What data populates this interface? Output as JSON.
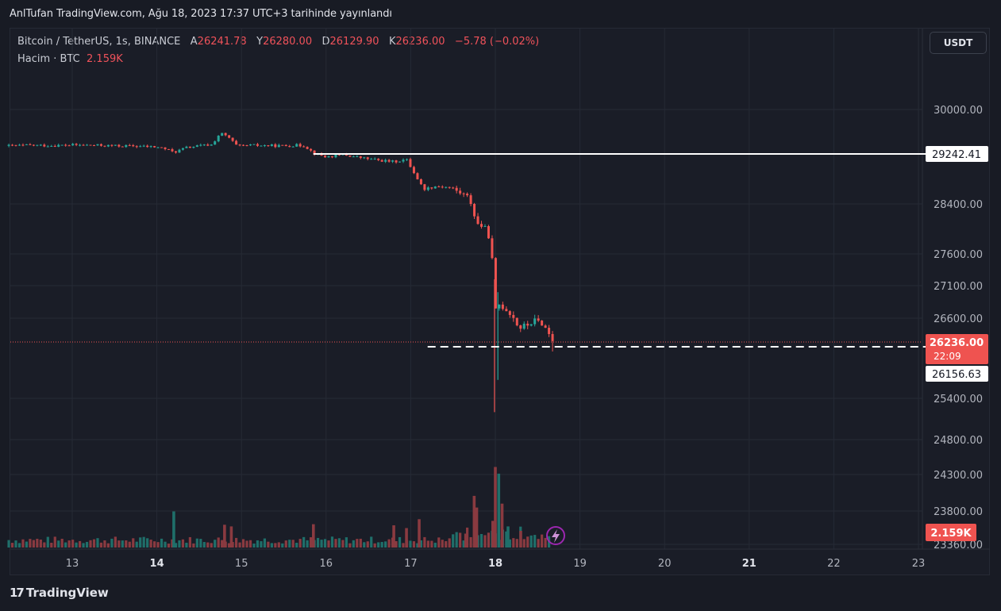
{
  "header": {
    "published": "AnlTufan TradingView.com, Ağu 18, 2023 17:37 UTC+3 tarihinde yayınlandı"
  },
  "legend": {
    "symbol": "Bitcoin / TetherUS, 1s, BINANCE",
    "open_label": "A",
    "open": "26241.78",
    "high_label": "Y",
    "high": "26280.00",
    "low_label": "D",
    "low": "26129.90",
    "close_label": "K",
    "close": "26236.00",
    "change": "−5.78 (−0.02%)",
    "volume_label": "Hacim · BTC",
    "volume": "2.159K"
  },
  "currency_button": "USDT",
  "footer": {
    "brand": "TradingView",
    "logo_mark": "17"
  },
  "colors": {
    "up": "#26a69a",
    "down": "#ef5350",
    "up_volume": "#1f6f6a",
    "down_volume": "#8a3a40",
    "background": "#1a1d27",
    "grid": "#262a35"
  },
  "chart_data": {
    "type": "candlestick",
    "symbol": "Bitcoin / TetherUS",
    "interval": "1s",
    "exchange": "BINANCE",
    "y_ticks": [
      30000,
      28400,
      27600,
      27100,
      26600,
      25400,
      24800,
      24300,
      23800,
      23360
    ],
    "y_tick_labels": [
      "30000.00",
      "28400.00",
      "27600.00",
      "27100.00",
      "26600.00",
      "25400.00",
      "24800.00",
      "24300.00",
      "23800.00",
      "23360.00"
    ],
    "x_ticks": [
      13,
      14,
      15,
      16,
      17,
      18,
      19,
      20,
      21,
      22,
      23
    ],
    "x_tick_labels": [
      "13",
      "14",
      "15",
      "16",
      "17",
      "18",
      "19",
      "20",
      "21",
      "22",
      "23"
    ],
    "x_range": [
      12.25,
      23.3
    ],
    "bold_x_ticks": [
      14,
      18,
      21
    ],
    "horizontal_lines": [
      {
        "price": 29242.41,
        "label": "29242.41",
        "style": "solid",
        "from_x": 15.85
      },
      {
        "price": 26156.63,
        "label": "26156.63",
        "style": "dashed",
        "from_x": 17.2
      }
    ],
    "last_price": {
      "value": 26236.0,
      "label": "26236.00",
      "countdown": "22:09"
    },
    "volume_badge": "2.159K",
    "price_path": [
      [
        12.25,
        29380
      ],
      [
        12.5,
        29390
      ],
      [
        12.75,
        29385
      ],
      [
        13.0,
        29395
      ],
      [
        13.25,
        29390
      ],
      [
        13.5,
        29380
      ],
      [
        13.75,
        29375
      ],
      [
        14.0,
        29360
      ],
      [
        14.1,
        29330
      ],
      [
        14.2,
        29270
      ],
      [
        14.35,
        29350
      ],
      [
        14.5,
        29380
      ],
      [
        14.65,
        29400
      ],
      [
        14.75,
        29600
      ],
      [
        14.85,
        29520
      ],
      [
        14.95,
        29370
      ],
      [
        15.1,
        29390
      ],
      [
        15.3,
        29385
      ],
      [
        15.5,
        29380
      ],
      [
        15.65,
        29390
      ],
      [
        15.75,
        29380
      ],
      [
        15.85,
        29260
      ],
      [
        16.0,
        29190
      ],
      [
        16.2,
        29230
      ],
      [
        16.4,
        29180
      ],
      [
        16.6,
        29140
      ],
      [
        16.8,
        29110
      ],
      [
        16.95,
        29150
      ],
      [
        17.05,
        28900
      ],
      [
        17.15,
        28650
      ],
      [
        17.3,
        28700
      ],
      [
        17.45,
        28680
      ],
      [
        17.6,
        28580
      ],
      [
        17.7,
        28480
      ],
      [
        17.78,
        28080
      ],
      [
        17.85,
        28050
      ],
      [
        17.93,
        27880
      ],
      [
        17.97,
        27400
      ],
      [
        18.0,
        26700
      ],
      [
        18.05,
        26820
      ],
      [
        18.12,
        26750
      ],
      [
        18.2,
        26650
      ],
      [
        18.28,
        26450
      ],
      [
        18.36,
        26480
      ],
      [
        18.45,
        26560
      ],
      [
        18.55,
        26530
      ],
      [
        18.65,
        26330
      ],
      [
        18.7,
        26236
      ]
    ],
    "spikes": [
      {
        "x": 17.99,
        "high": 27200,
        "low": 25200
      },
      {
        "x": 18.03,
        "high": 27000,
        "low": 25950
      }
    ],
    "volume_bars": [
      {
        "x": 14.2,
        "v": 6.5
      },
      {
        "x": 14.8,
        "v": 4.1
      },
      {
        "x": 14.88,
        "v": 3.8
      },
      {
        "x": 15.85,
        "v": 4.2
      },
      {
        "x": 16.8,
        "v": 4.0
      },
      {
        "x": 16.95,
        "v": 3.5
      },
      {
        "x": 17.1,
        "v": 5.1
      },
      {
        "x": 17.65,
        "v": 2.5
      },
      {
        "x": 17.75,
        "v": 9.3
      },
      {
        "x": 17.78,
        "v": 7.2
      },
      {
        "x": 17.97,
        "v": 4.8
      },
      {
        "x": 18.0,
        "v": 14.5
      },
      {
        "x": 18.04,
        "v": 13.3
      },
      {
        "x": 18.08,
        "v": 7.9
      },
      {
        "x": 18.15,
        "v": 3.8
      },
      {
        "x": 18.3,
        "v": 3.0
      }
    ]
  }
}
